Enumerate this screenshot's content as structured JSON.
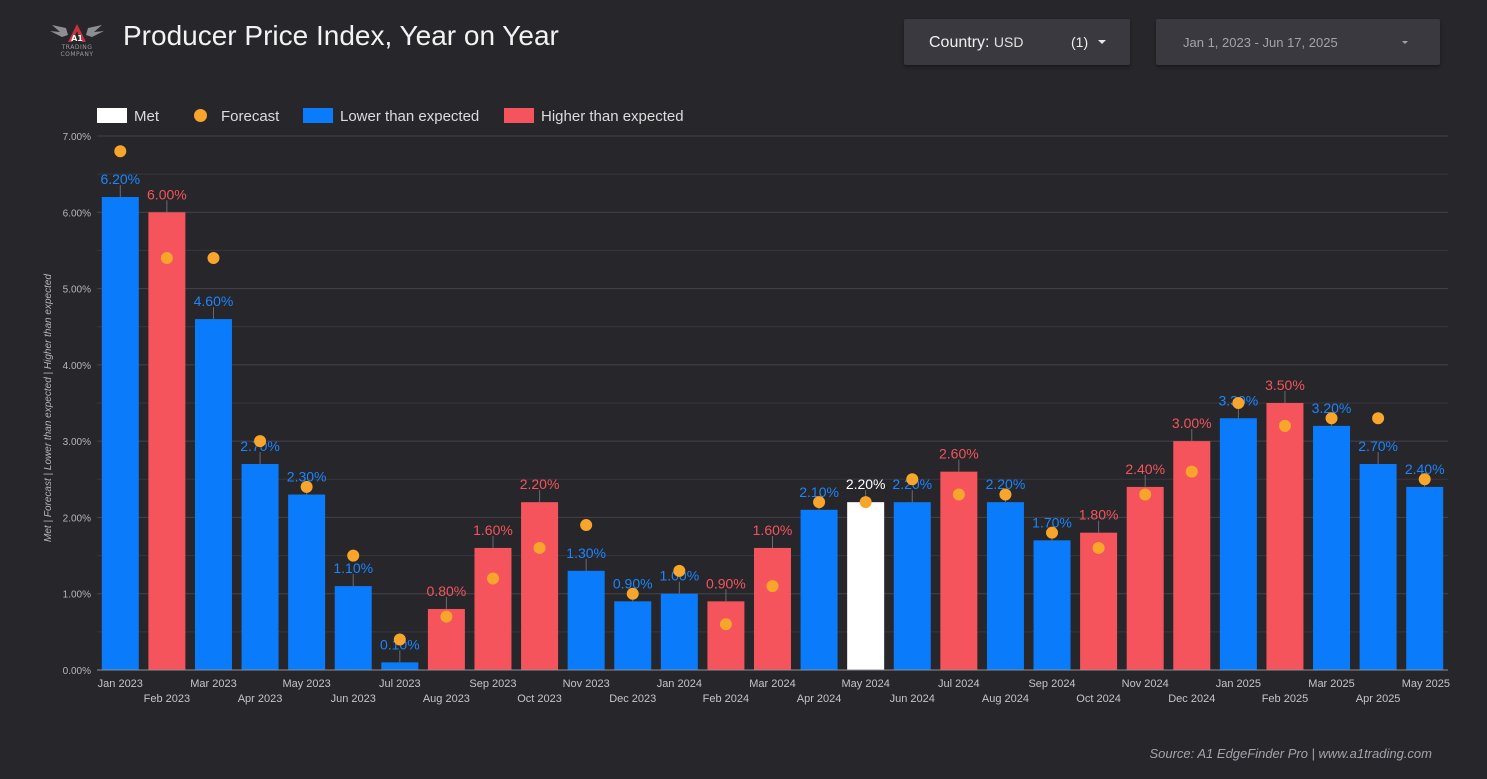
{
  "header": {
    "title": "Producer Price Index, Year on Year",
    "logo_text": "TRADING COMPANY",
    "logo_glyph": "A1"
  },
  "filters": {
    "country_label": "Country",
    "country_value": "USD",
    "country_count": "(1)",
    "date_range": "Jan 1, 2023 - Jun 17, 2025"
  },
  "footer": {
    "source": "Source: A1 EdgeFinder Pro | www.a1trading.com"
  },
  "chart_data": {
    "type": "bar",
    "ylabel": "Met | Forecast | Lower than expected | Higher than expected",
    "ylim": [
      0,
      7
    ],
    "y_ticks": [
      "0.00%",
      "1.00%",
      "2.00%",
      "3.00%",
      "4.00%",
      "5.00%",
      "6.00%",
      "7.00%"
    ],
    "grid": true,
    "legend_position": "top-left",
    "legend": [
      {
        "label": "Met",
        "kind": "box",
        "color": "#ffffff"
      },
      {
        "label": "Forecast",
        "kind": "dot",
        "color": "#f7a52b"
      },
      {
        "label": "Lower than expected",
        "kind": "box",
        "color": "#0a7cfb"
      },
      {
        "label": "Higher than expected",
        "kind": "box",
        "color": "#f5545c"
      }
    ],
    "colors": {
      "met": "#ffffff",
      "lower": "#0a7cfb",
      "higher": "#f5545c",
      "forecast": "#f7a52b"
    },
    "categories": [
      "Jan 2023",
      "Feb 2023",
      "Mar 2023",
      "Apr 2023",
      "May 2023",
      "Jun 2023",
      "Jul 2023",
      "Aug 2023",
      "Sep 2023",
      "Oct 2023",
      "Nov 2023",
      "Dec 2023",
      "Jan 2024",
      "Feb 2024",
      "Mar 2024",
      "Apr 2024",
      "May 2024",
      "Jun 2024",
      "Jul 2024",
      "Aug 2024",
      "Sep 2024",
      "Oct 2024",
      "Nov 2024",
      "Dec 2024",
      "Jan 2025",
      "Feb 2025",
      "Mar 2025",
      "Apr 2025",
      "May 2025"
    ],
    "values": [
      6.2,
      6.0,
      4.6,
      2.7,
      2.3,
      1.1,
      0.1,
      0.8,
      1.6,
      2.2,
      1.3,
      0.9,
      1.0,
      0.9,
      1.6,
      2.1,
      2.2,
      2.2,
      2.6,
      2.2,
      1.7,
      1.8,
      2.4,
      3.0,
      3.3,
      3.5,
      3.2,
      2.7,
      2.4
    ],
    "value_labels": [
      "6.20%",
      "6.00%",
      "4.60%",
      "2.70%",
      "2.30%",
      "1.10%",
      "0.10%",
      "0.80%",
      "1.60%",
      "2.20%",
      "1.30%",
      "0.90%",
      "1.00%",
      "0.90%",
      "1.60%",
      "2.10%",
      "2.20%",
      "2.20%",
      "2.60%",
      "2.20%",
      "1.70%",
      "1.80%",
      "2.40%",
      "3.00%",
      "3.30%",
      "3.50%",
      "3.20%",
      "2.70%",
      "2.40%"
    ],
    "forecast": [
      6.8,
      5.4,
      5.4,
      3.0,
      2.4,
      1.5,
      0.4,
      0.7,
      1.2,
      1.6,
      1.9,
      1.0,
      1.3,
      0.6,
      1.1,
      2.2,
      2.2,
      2.5,
      2.3,
      2.3,
      1.8,
      1.6,
      2.3,
      2.6,
      3.5,
      3.2,
      3.3,
      3.3,
      2.5
    ],
    "status": [
      "lower",
      "higher",
      "lower",
      "lower",
      "lower",
      "lower",
      "lower",
      "higher",
      "higher",
      "higher",
      "lower",
      "lower",
      "lower",
      "higher",
      "higher",
      "lower",
      "met",
      "lower",
      "higher",
      "lower",
      "lower",
      "higher",
      "higher",
      "higher",
      "lower",
      "higher",
      "lower",
      "lower",
      "lower"
    ]
  }
}
